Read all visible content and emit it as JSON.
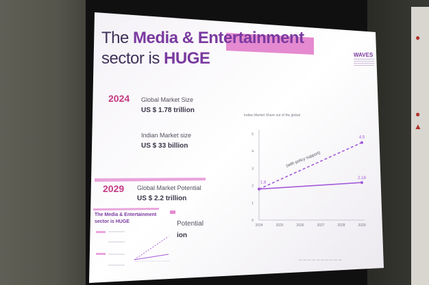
{
  "slide": {
    "title_line1_pre": "The ",
    "title_line1_bold": "Media & Entertainment",
    "title_line2_pre": "sector is ",
    "title_line2_bold": "HUGE",
    "logo": "WAVES",
    "year_2024": "2024",
    "global_label": "Global Market Size",
    "global_value": "US $ 1.78 trillion",
    "indian_label": "Indian Market size",
    "indian_value": "US $ 33 billion",
    "year_2029": "2029",
    "potential_label": "Global Market Potential",
    "potential_value": "US $ 2.2 trillion",
    "overlay_title_1": "The Media & Entertainment",
    "overlay_title_2": "sector is HUGE",
    "overlay_text_1": "Potential",
    "overlay_text_2": "ion"
  },
  "chart_data": {
    "type": "line",
    "title": "Indian Market Share out of the global",
    "x": [
      2024,
      2025,
      2026,
      2027,
      2028,
      2029
    ],
    "ylim": [
      0,
      5
    ],
    "yticks": [
      0,
      1,
      2,
      3,
      4,
      5
    ],
    "series": [
      {
        "style": "solid",
        "color": "#a35ad8",
        "x": [
          2024,
          2029
        ],
        "values": [
          1.8,
          2.18
        ]
      },
      {
        "style": "dashed",
        "color": "#a35ad8",
        "x": [
          2024,
          2029
        ],
        "values": [
          1.8,
          4.5
        ],
        "annotation": "(with policy support)"
      }
    ],
    "point_labels": [
      "1.8",
      "2.18",
      "4.5"
    ]
  },
  "colors": {
    "accent_pink": "#e58ad0",
    "accent_purple": "#7a3aa0",
    "year_pink": "#c43a84"
  }
}
